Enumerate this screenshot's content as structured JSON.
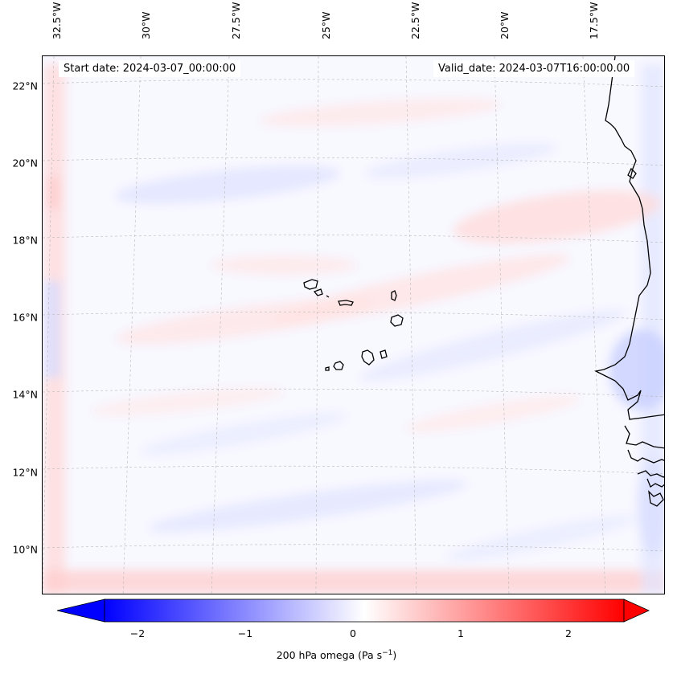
{
  "map": {
    "start_date_text": "Start date: 2024-03-07_00:00:00",
    "valid_date_text": "Valid_date: 2024-03-07T16:00:00.00",
    "longitude_labels": [
      "32.5°W",
      "30°W",
      "27.5°W",
      "25°W",
      "22.5°W",
      "20°W",
      "17.5°W"
    ],
    "latitude_labels": [
      "22°N",
      "20°N",
      "18°N",
      "16°N",
      "14°N",
      "12°N",
      "10°N"
    ],
    "field_variable": "200 hPa omega",
    "region": "Eastern tropical Atlantic, Cabo Verde islands and West African coast"
  },
  "colorbar": {
    "label_text": "200 hPa omega (Pa s",
    "label_superscript": "−1",
    "label_close": ")",
    "ticks": [
      "−2",
      "−1",
      "0",
      "1",
      "2"
    ],
    "tick_values": [
      -2,
      -1,
      0,
      1,
      2
    ],
    "range": [
      -2.6,
      2.6
    ],
    "extend": "both",
    "colormap": "bwr",
    "colors": {
      "low": "#0000ff",
      "mid": "#ffffff",
      "high": "#ff0000"
    }
  },
  "colors": {
    "coastline": "#000000",
    "gridline": "#b0b0b0",
    "background": "#f8f8ff"
  }
}
